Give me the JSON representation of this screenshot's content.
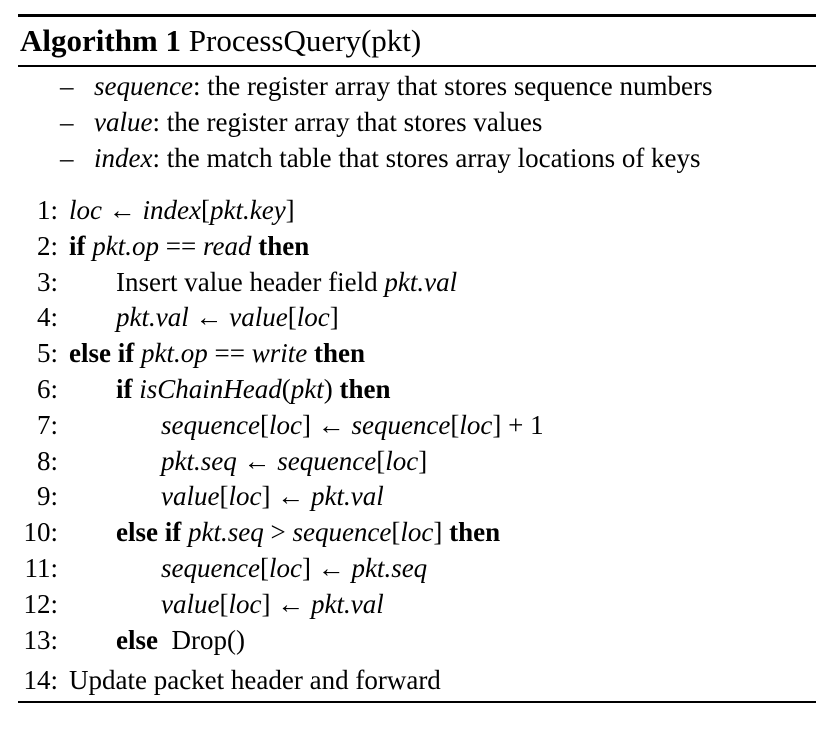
{
  "algorithm": {
    "label": "Algorithm 1",
    "name": "ProcessQuery(pkt)"
  },
  "declarations": [
    {
      "name": "sequence",
      "description": ": the register array that stores sequence numbers"
    },
    {
      "name": "value",
      "description": ": the register array that stores values"
    },
    {
      "name": "index",
      "description": ": the match table that stores array locations of keys"
    }
  ],
  "lines": [
    {
      "num": "1:"
    },
    {
      "num": "2:"
    },
    {
      "num": "3:"
    },
    {
      "num": "4:"
    },
    {
      "num": "5:"
    },
    {
      "num": "6:"
    },
    {
      "num": "7:"
    },
    {
      "num": "8:"
    },
    {
      "num": "9:"
    },
    {
      "num": "10:"
    },
    {
      "num": "11:"
    },
    {
      "num": "12:"
    },
    {
      "num": "13:"
    },
    {
      "num": "14:"
    }
  ],
  "tokens": {
    "dash": "–",
    "arrow": "←",
    "eq": "==",
    "gt": ">",
    "plus": "+",
    "one": "1",
    "lbr": "[",
    "rbr": "]",
    "lpar": "(",
    "rpar": ")",
    "kw_if": "if",
    "kw_then": "then",
    "kw_else_if": "else if",
    "kw_else": "else",
    "loc": "loc",
    "index": "index",
    "pkt_key": "pkt.key",
    "pkt_op": "pkt.op",
    "pkt_val": "pkt.val",
    "pkt_seq": "pkt.seq",
    "pkt": "pkt",
    "read": "read",
    "write": "write",
    "value": "value",
    "sequence": "sequence",
    "is_chain_head": "isChainHead",
    "insert_text": "Insert value header field",
    "drop": "Drop()",
    "update_text": "Update packet header and forward"
  }
}
